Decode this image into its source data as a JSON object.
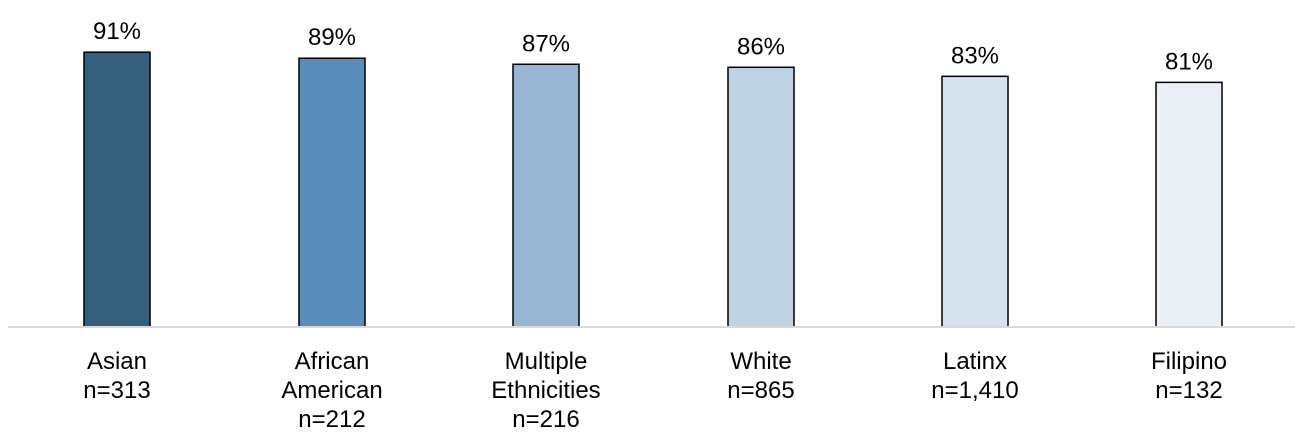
{
  "chart_data": {
    "type": "bar",
    "categories": [
      [
        "Asian",
        "n=313"
      ],
      [
        "African",
        "American",
        "n=212"
      ],
      [
        "Multiple",
        "Ethnicities",
        "n=216"
      ],
      [
        "White",
        "n=865"
      ],
      [
        "Latinx",
        "n=1,410"
      ],
      [
        "Filipino",
        "n=132"
      ]
    ],
    "values": [
      91,
      89,
      87,
      86,
      83,
      81
    ],
    "value_labels": [
      "91%",
      "89%",
      "87%",
      "86%",
      "83%",
      "81%"
    ],
    "colors": [
      "#365e7d",
      "#578cbb",
      "#96b6d3",
      "#c0d3e4",
      "#d6e2ed",
      "#eaf0f6"
    ],
    "ylim": [
      0,
      100
    ],
    "grid": false,
    "title": "",
    "xlabel": "",
    "ylabel": ""
  }
}
